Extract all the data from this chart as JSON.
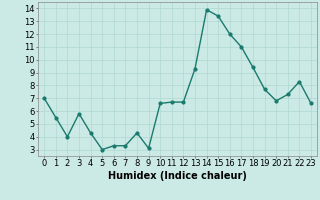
{
  "x": [
    0,
    1,
    2,
    3,
    4,
    5,
    6,
    7,
    8,
    9,
    10,
    11,
    12,
    13,
    14,
    15,
    16,
    17,
    18,
    19,
    20,
    21,
    22,
    23
  ],
  "y": [
    7.0,
    5.5,
    4.0,
    5.8,
    4.3,
    3.0,
    3.3,
    3.3,
    4.3,
    3.1,
    6.6,
    6.7,
    6.7,
    9.3,
    13.9,
    13.4,
    12.0,
    11.0,
    9.4,
    7.7,
    6.8,
    7.3,
    8.3,
    6.6
  ],
  "line_color": "#1a7a6e",
  "marker": "o",
  "marker_size": 2,
  "line_width": 1.0,
  "bg_color": "#cceae5",
  "grid_color": "#b0d8d2",
  "xlabel": "Humidex (Indice chaleur)",
  "xlabel_fontsize": 7,
  "ylim": [
    2.5,
    14.5
  ],
  "xlim": [
    -0.5,
    23.5
  ],
  "yticks": [
    3,
    4,
    5,
    6,
    7,
    8,
    9,
    10,
    11,
    12,
    13,
    14
  ],
  "xticks": [
    0,
    1,
    2,
    3,
    4,
    5,
    6,
    7,
    8,
    9,
    10,
    11,
    12,
    13,
    14,
    15,
    16,
    17,
    18,
    19,
    20,
    21,
    22,
    23
  ],
  "tick_fontsize": 6
}
